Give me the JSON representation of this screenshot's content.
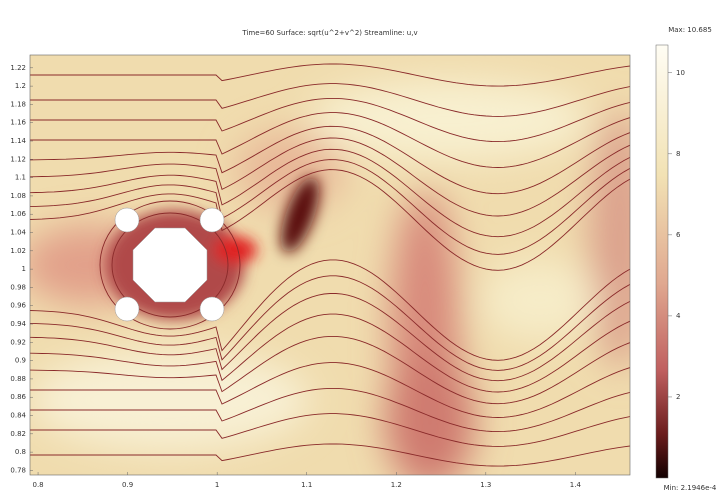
{
  "chart_data": {
    "type": "heatmap",
    "title": "Time=60   Surface: sqrt(u^2+v^2)   Streamline: u,v",
    "xlim": [
      0.791,
      1.461
    ],
    "ylim": [
      0.775,
      1.234
    ],
    "xticks": [
      0.8,
      0.9,
      1,
      1.1,
      1.2,
      1.3,
      1.4
    ],
    "yticks": [
      1.22,
      1.2,
      1.18,
      1.16,
      1.14,
      1.12,
      1.1,
      1.08,
      1.06,
      1.04,
      1.02,
      1,
      0.98,
      0.96,
      0.94,
      0.92,
      0.9,
      0.88,
      0.86,
      0.84,
      0.82,
      0.8,
      0.78
    ],
    "colorbar": {
      "max_label": "Max: 10.685",
      "min_label": "Min: 2.1946e-4",
      "lim": [
        0,
        10.685
      ],
      "ticks": [
        2,
        4,
        6,
        8,
        10
      ]
    }
  }
}
